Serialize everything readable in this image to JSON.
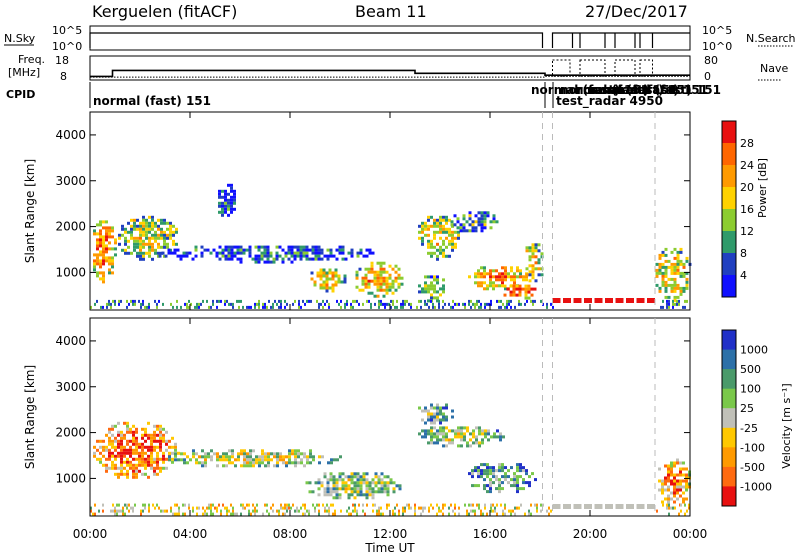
{
  "header": {
    "radar": "Kerguelen (fitACF)",
    "beam": "Beam 11",
    "date": "27/Dec/2017"
  },
  "status_panels": {
    "nsky_label": "N.Sky",
    "nsearch_label": "N.Search",
    "nsky_ticks": [
      "10^5",
      "10^0"
    ],
    "nsearch_ticks": [
      "10^5",
      "10^0"
    ],
    "freq_label_1": "Freq.",
    "freq_label_2": "[MHz]",
    "freq_ticks": [
      "18",
      "8"
    ],
    "nave_label": "Nave",
    "nave_ticks": [
      "80",
      "0"
    ],
    "cpid_label": "CPID",
    "cpid_segments": [
      {
        "text": "normal (fast) 151",
        "start_hour": 0.0
      },
      {
        "text": "normal (fast) 151",
        "start_hour": 18.1
      },
      {
        "text": "test_radar 4950",
        "start_hour": 18.5
      }
    ],
    "cpid_overlap_labels": [
      "normal (fast) 151",
      "normal (fast) 151",
      "normal (fast) 151",
      "normal (fast) 151"
    ],
    "freq_series": [
      [
        0.0,
        9.5
      ],
      [
        0.9,
        9.5
      ],
      [
        0.9,
        12.0
      ],
      [
        13.0,
        12.0
      ],
      [
        13.0,
        10.8
      ],
      [
        18.2,
        10.8
      ],
      [
        18.2,
        10.0
      ],
      [
        24.0,
        10.0
      ]
    ],
    "freq_dashed_series": [
      [
        0.0,
        9.2
      ],
      [
        18.2,
        9.2
      ],
      [
        18.2,
        9.5
      ],
      [
        24.0,
        9.5
      ]
    ],
    "nave_dashed_windows": [
      [
        18.5,
        19.2
      ],
      [
        19.6,
        20.6
      ],
      [
        21.0,
        21.8
      ],
      [
        22.0,
        22.5
      ]
    ],
    "nsky_gaps_hours": [
      18.1,
      18.5,
      19.3,
      19.6,
      20.6,
      21.0,
      21.8,
      22.0,
      22.5
    ]
  },
  "chart_data": [
    {
      "type": "heatmap",
      "name": "Power",
      "ylabel": "Slant Range [km]",
      "yticks": [
        1000,
        2000,
        3000,
        4000
      ],
      "ylim": [
        180,
        4500
      ],
      "xlim_hours": [
        0,
        24
      ],
      "colorbar_label": "Power [dB]",
      "colorbar_ticks": [
        "28",
        "24",
        "20",
        "16",
        "12",
        "8",
        "4"
      ],
      "colorbar_colors": [
        "#e81010",
        "#ff6600",
        "#ff9a00",
        "#ffd200",
        "#8ccc30",
        "#2f9a6a",
        "#2040c0",
        "#1010ff"
      ],
      "regions": [
        {
          "h0": 0.0,
          "h1": 1.0,
          "r0": 800,
          "r1": 2200,
          "level": 0.75
        },
        {
          "h0": 1.0,
          "h1": 3.5,
          "r0": 1300,
          "r1": 2300,
          "level": 0.5
        },
        {
          "h0": 2.5,
          "h1": 11.5,
          "r0": 1250,
          "r1": 1650,
          "level": 0.2
        },
        {
          "h0": 5.0,
          "h1": 5.8,
          "r0": 2200,
          "r1": 3000,
          "level": 0.15
        },
        {
          "h0": 8.7,
          "h1": 10.2,
          "r0": 600,
          "r1": 1150,
          "level": 0.6
        },
        {
          "h0": 10.5,
          "h1": 12.5,
          "r0": 500,
          "r1": 1300,
          "level": 0.65
        },
        {
          "h0": 13.0,
          "h1": 14.7,
          "r0": 1300,
          "r1": 2300,
          "level": 0.55
        },
        {
          "h0": 14.3,
          "h1": 16.3,
          "r0": 1900,
          "r1": 2400,
          "level": 0.3
        },
        {
          "h0": 13.0,
          "h1": 14.2,
          "r0": 350,
          "r1": 1000,
          "level": 0.4
        },
        {
          "h0": 15.0,
          "h1": 17.5,
          "r0": 650,
          "r1": 1200,
          "level": 0.7
        },
        {
          "h0": 16.3,
          "h1": 18.0,
          "r0": 450,
          "r1": 800,
          "level": 0.85
        },
        {
          "h0": 17.3,
          "h1": 18.1,
          "r0": 800,
          "r1": 1700,
          "level": 0.55
        },
        {
          "h0": 22.5,
          "h1": 24.0,
          "r0": 400,
          "r1": 1600,
          "level": 0.6
        }
      ],
      "ground_band": {
        "r0": 200,
        "r1": 400,
        "level": 0.25
      },
      "test_radar_blocks": {
        "h0": 18.5,
        "h1": 22.6,
        "r": 280,
        "level": 0.95
      }
    },
    {
      "type": "heatmap",
      "name": "Velocity",
      "ylabel": "Slant Range [km]",
      "yticks": [
        1000,
        2000,
        3000,
        4000
      ],
      "ylim": [
        180,
        4500
      ],
      "xlim_hours": [
        0,
        24
      ],
      "xticks": [
        "00:00",
        "04:00",
        "08:00",
        "12:00",
        "16:00",
        "20:00",
        "00:00"
      ],
      "xlabel": "Time UT",
      "colorbar_label": "Velocity [m s⁻¹]",
      "colorbar_ticks": [
        "1000",
        "500",
        "100",
        "25",
        "-25",
        "-100",
        "-500",
        "-1000"
      ],
      "colorbar_colors": [
        "#2030c8",
        "#2c70a8",
        "#4a9a6a",
        "#7ac84a",
        "#c0c0b8",
        "#ffc800",
        "#ff9a00",
        "#ff6a10",
        "#e81010"
      ],
      "regions": [
        {
          "h0": 0.0,
          "h1": 3.5,
          "r0": 1000,
          "r1": 2300,
          "level": 0.85
        },
        {
          "h0": 3.0,
          "h1": 10.0,
          "r0": 1250,
          "r1": 1700,
          "level": 0.5
        },
        {
          "h0": 8.5,
          "h1": 12.5,
          "r0": 550,
          "r1": 1200,
          "level": 0.45
        },
        {
          "h0": 13.0,
          "h1": 16.5,
          "r0": 1700,
          "r1": 2200,
          "level": 0.5
        },
        {
          "h0": 13.0,
          "h1": 14.5,
          "r0": 2200,
          "r1": 2700,
          "level": 0.35
        },
        {
          "h0": 15.0,
          "h1": 17.8,
          "r0": 700,
          "r1": 1400,
          "level": 0.3
        },
        {
          "h0": 22.6,
          "h1": 24.0,
          "r0": 350,
          "r1": 1500,
          "level": 0.75
        }
      ],
      "ground_band": {
        "r0": 200,
        "r1": 450,
        "level": 0.55
      },
      "test_radar_blocks": {
        "h0": 18.5,
        "h1": 22.6,
        "r": 280,
        "level": 0.5
      }
    }
  ]
}
